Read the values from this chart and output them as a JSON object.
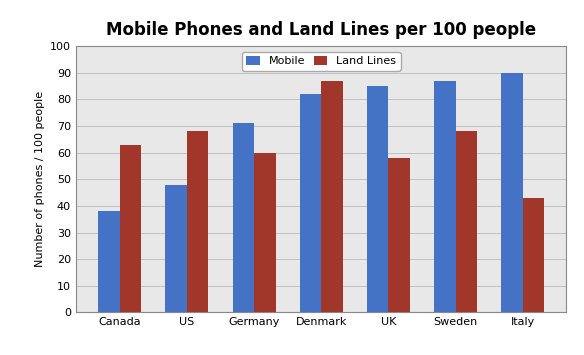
{
  "title": "Mobile Phones and Land Lines per 100 people",
  "ylabel": "Number of phones / 100 people",
  "categories": [
    "Canada",
    "US",
    "Germany",
    "Denmark",
    "UK",
    "Sweden",
    "Italy"
  ],
  "mobile": [
    38,
    48,
    71,
    82,
    85,
    87,
    90
  ],
  "landlines": [
    63,
    68,
    60,
    87,
    58,
    68,
    43
  ],
  "mobile_color": "#4472C4",
  "landline_color": "#A0372A",
  "legend_labels": [
    "Mobile",
    "Land Lines"
  ],
  "ylim": [
    0,
    100
  ],
  "yticks": [
    0,
    10,
    20,
    30,
    40,
    50,
    60,
    70,
    80,
    90,
    100
  ],
  "fig_bg_color": "#FFFFFF",
  "plot_bg_color": "#E8E8E8",
  "title_fontsize": 12,
  "axis_label_fontsize": 8,
  "tick_fontsize": 8,
  "legend_fontsize": 8,
  "bar_width": 0.32
}
